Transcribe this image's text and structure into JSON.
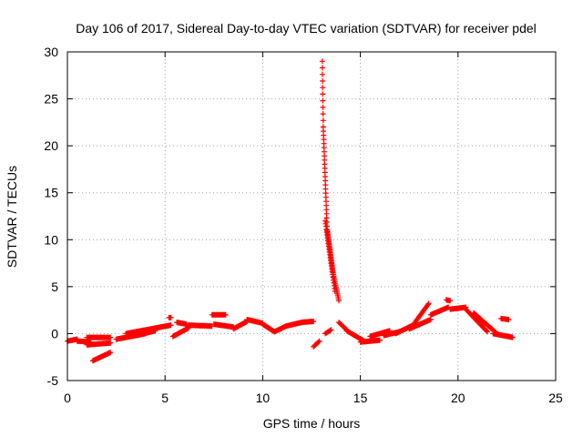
{
  "chart_data": {
    "type": "scatter",
    "title": "Day 106 of 2017, Sidereal Day-to-day VTEC variation (SDTVAR) for receiver pdel",
    "xlabel": "GPS time / hours",
    "ylabel": "SDTVAR / TECUs",
    "xlim": [
      0,
      25
    ],
    "ylim": [
      -5,
      30
    ],
    "xticks": [
      0,
      5,
      10,
      15,
      20,
      25
    ],
    "yticks": [
      -5,
      0,
      5,
      10,
      15,
      20,
      25,
      30
    ],
    "xtick_labels": [
      "0",
      "5",
      "10",
      "15",
      "20",
      "25"
    ],
    "ytick_labels": [
      "-5",
      "0",
      "5",
      "10",
      "15",
      "20",
      "25",
      "30"
    ],
    "grid": true,
    "marker": "+",
    "marker_color": "#ff0000",
    "series": [
      {
        "name": "SDTVAR",
        "segments": [
          {
            "from": [
              0.0,
              -0.8
            ],
            "to": [
              0.5,
              -0.6
            ],
            "step": 0.04
          },
          {
            "from": [
              0.5,
              -0.8
            ],
            "to": [
              1.2,
              -0.9
            ],
            "step": 0.04
          },
          {
            "from": [
              1.0,
              -0.4
            ],
            "to": [
              2.2,
              -0.4
            ],
            "step": 0.04
          },
          {
            "from": [
              1.0,
              -1.2
            ],
            "to": [
              2.2,
              -1.0
            ],
            "step": 0.04
          },
          {
            "from": [
              1.3,
              -2.9
            ],
            "to": [
              2.2,
              -2.0
            ],
            "step": 0.04
          },
          {
            "from": [
              2.5,
              -0.6
            ],
            "to": [
              4.0,
              0.0
            ],
            "step": 0.04
          },
          {
            "from": [
              3.0,
              0.0
            ],
            "to": [
              5.3,
              0.9
            ],
            "step": 0.04
          },
          {
            "from": [
              3.5,
              -0.2
            ],
            "to": [
              4.5,
              0.3
            ],
            "step": 0.04
          },
          {
            "from": [
              5.2,
              1.7
            ],
            "to": [
              5.3,
              1.7
            ],
            "step": 0.05
          },
          {
            "from": [
              5.4,
              -0.3
            ],
            "to": [
              6.2,
              0.6
            ],
            "step": 0.04
          },
          {
            "from": [
              5.6,
              1.2
            ],
            "to": [
              6.1,
              1.0
            ],
            "step": 0.04
          },
          {
            "from": [
              6.2,
              0.9
            ],
            "to": [
              7.4,
              0.8
            ],
            "step": 0.04
          },
          {
            "from": [
              7.4,
              2.0
            ],
            "to": [
              8.1,
              2.0
            ],
            "step": 0.04
          },
          {
            "from": [
              7.5,
              1.0
            ],
            "to": [
              8.5,
              0.7
            ],
            "step": 0.04
          },
          {
            "from": [
              8.5,
              0.5
            ],
            "to": [
              9.2,
              1.3
            ],
            "step": 0.04
          },
          {
            "from": [
              9.2,
              1.5
            ],
            "to": [
              10.0,
              1.1
            ],
            "step": 0.04
          },
          {
            "from": [
              10.0,
              1.0
            ],
            "to": [
              10.6,
              0.2
            ],
            "step": 0.04
          },
          {
            "from": [
              10.6,
              0.2
            ],
            "to": [
              11.2,
              0.8
            ],
            "step": 0.04
          },
          {
            "from": [
              11.2,
              0.8
            ],
            "to": [
              12.0,
              1.2
            ],
            "step": 0.04
          },
          {
            "from": [
              12.0,
              1.2
            ],
            "to": [
              12.6,
              1.3
            ],
            "step": 0.04
          },
          {
            "from": [
              12.6,
              -1.4
            ],
            "to": [
              12.9,
              -0.8
            ],
            "step": 0.05
          },
          {
            "from": [
              13.05,
              29.0
            ],
            "to": [
              13.1,
              22.0
            ],
            "step": 0.005
          },
          {
            "from": [
              13.1,
              22.0
            ],
            "to": [
              13.3,
              11.0
            ],
            "step": 0.008
          },
          {
            "from": [
              13.3,
              11.0
            ],
            "to": [
              13.6,
              6.5
            ],
            "step": 0.01
          },
          {
            "from": [
              13.6,
              6.5
            ],
            "to": [
              13.9,
              3.5
            ],
            "step": 0.02
          },
          {
            "from": [
              13.2,
              12.0
            ],
            "to": [
              13.7,
              4.5
            ],
            "step": 0.02
          },
          {
            "from": [
              13.2,
              0.0
            ],
            "to": [
              13.5,
              0.4
            ],
            "step": 0.05
          },
          {
            "from": [
              13.9,
              1.2
            ],
            "to": [
              14.3,
              0.4
            ],
            "step": 0.05
          },
          {
            "from": [
              14.3,
              0.3
            ],
            "to": [
              15.2,
              -0.8
            ],
            "step": 0.04
          },
          {
            "from": [
              15.0,
              -0.9
            ],
            "to": [
              16.0,
              -0.7
            ],
            "step": 0.04
          },
          {
            "from": [
              15.5,
              -0.3
            ],
            "to": [
              16.5,
              0.3
            ],
            "step": 0.04
          },
          {
            "from": [
              16.2,
              -0.2
            ],
            "to": [
              17.0,
              0.2
            ],
            "step": 0.04
          },
          {
            "from": [
              16.8,
              0.0
            ],
            "to": [
              17.8,
              1.0
            ],
            "step": 0.04
          },
          {
            "from": [
              17.5,
              0.5
            ],
            "to": [
              18.6,
              1.5
            ],
            "step": 0.04
          },
          {
            "from": [
              17.8,
              1.2
            ],
            "to": [
              18.5,
              3.2
            ],
            "step": 0.04
          },
          {
            "from": [
              18.6,
              2.0
            ],
            "to": [
              19.5,
              2.8
            ],
            "step": 0.04
          },
          {
            "from": [
              19.4,
              3.6
            ],
            "to": [
              19.6,
              3.5
            ],
            "step": 0.05
          },
          {
            "from": [
              19.6,
              2.6
            ],
            "to": [
              20.4,
              2.8
            ],
            "step": 0.04
          },
          {
            "from": [
              20.4,
              2.6
            ],
            "to": [
              21.5,
              0.2
            ],
            "step": 0.04
          },
          {
            "from": [
              20.8,
              2.2
            ],
            "to": [
              22.0,
              0.0
            ],
            "step": 0.04
          },
          {
            "from": [
              21.8,
              0.0
            ],
            "to": [
              22.8,
              -0.4
            ],
            "step": 0.04
          },
          {
            "from": [
              22.2,
              1.6
            ],
            "to": [
              22.6,
              1.5
            ],
            "step": 0.05
          }
        ]
      }
    ]
  }
}
